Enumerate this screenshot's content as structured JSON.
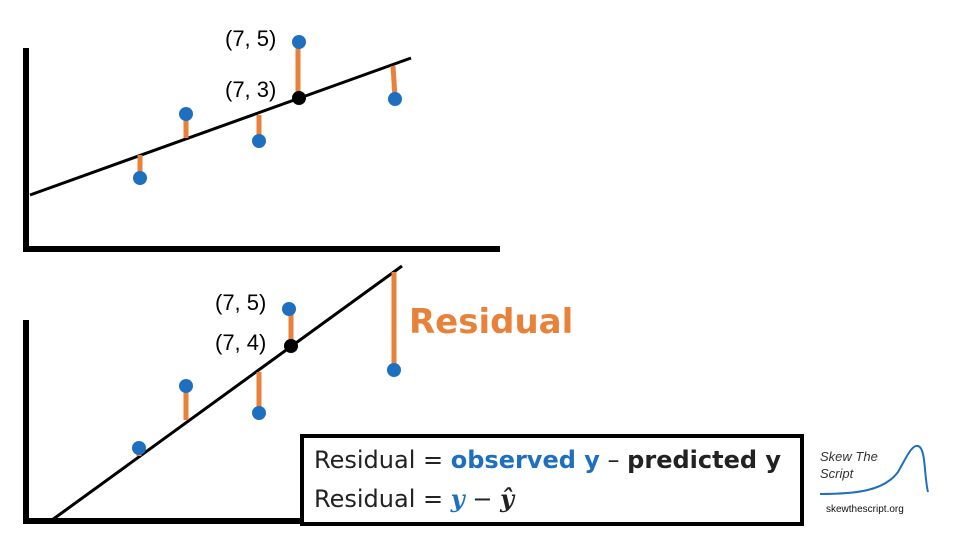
{
  "top_panel": {
    "observed_label": "(7, 5)",
    "predicted_label": "(7, 3)"
  },
  "bottom_panel": {
    "observed_label": "(7, 5)",
    "predicted_label": "(7, 4)",
    "residual_word": "Residual"
  },
  "formula": {
    "line1_prefix": "Residual = ",
    "line1_observed": "observed y",
    "line1_minus": " – ",
    "line1_predicted": "predicted y",
    "line2_prefix": "Residual = ",
    "line2_y": "y",
    "line2_minus": " − ",
    "line2_yhat": "ŷ"
  },
  "logo": {
    "name": "Skew The Script",
    "url": "skewthescript.org"
  },
  "colors": {
    "point": "#1F6FC1",
    "residual": "#E8823A",
    "line": "#000000",
    "predicted_point": "#000000"
  }
}
